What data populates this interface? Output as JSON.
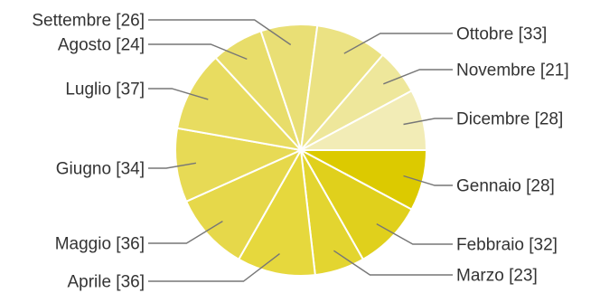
{
  "chart_data": {
    "type": "pie",
    "title": "",
    "start_angle_deg": 0,
    "direction": "clockwise",
    "legend": "none",
    "slices": [
      {
        "label": "Gennaio [28]",
        "value": 28,
        "color": "#DCCA00"
      },
      {
        "label": "Febbraio [32]",
        "value": 32,
        "color": "#E0D01C"
      },
      {
        "label": "Marzo [23]",
        "value": 23,
        "color": "#E3D530"
      },
      {
        "label": "Aprile [36]",
        "value": 36,
        "color": "#E6D83D"
      },
      {
        "label": "Maggio [36]",
        "value": 36,
        "color": "#E6D84A"
      },
      {
        "label": "Giugno [34]",
        "value": 34,
        "color": "#E7DA55"
      },
      {
        "label": "Luglio [37]",
        "value": 37,
        "color": "#E8DC60"
      },
      {
        "label": "Agosto [24]",
        "value": 24,
        "color": "#E8DD6A"
      },
      {
        "label": "Settembre [26]",
        "value": 26,
        "color": "#E9DF75"
      },
      {
        "label": "Ottobre [33]",
        "value": 33,
        "color": "#EBE283"
      },
      {
        "label": "Novembre [21]",
        "value": 21,
        "color": "#EEE79B"
      },
      {
        "label": "Dicembre [28]",
        "value": 28,
        "color": "#F2ECB6"
      }
    ]
  }
}
